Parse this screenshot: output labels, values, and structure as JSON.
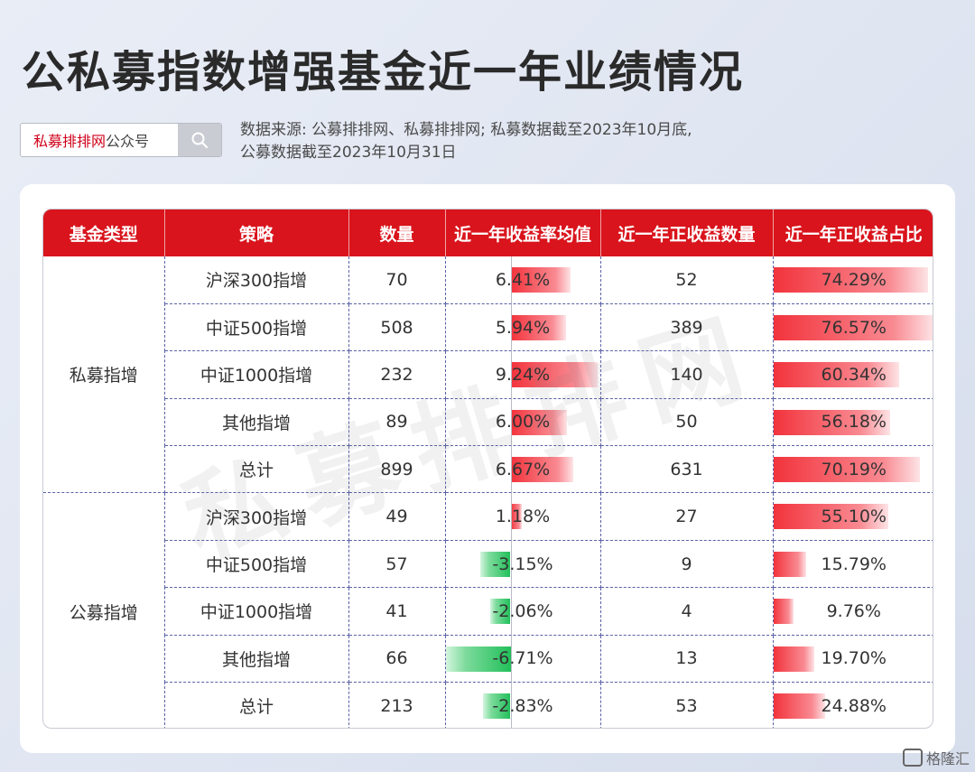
{
  "title": "公私募指数增强基金近一年业绩情况",
  "search": {
    "brand": "私募排排网",
    "suffix": "公众号"
  },
  "source_lines": [
    "数据来源: 公募排排网、私募排排网; 私募数据截至2023年10月底,",
    "公募数据截至2023年10月31日"
  ],
  "watermark": "私募排排网",
  "logo_text": "格隆汇",
  "colors": {
    "header": "#d9141c",
    "positive_bar": "#f2333c",
    "negative_bar": "#22bf5a"
  },
  "chart_data": {
    "type": "table",
    "columns": [
      "基金类型",
      "策略",
      "数量",
      "近一年收益率均值",
      "近一年正收益数量",
      "近一年正收益占比"
    ],
    "groups": [
      {
        "name": "私募指增",
        "rows": [
          {
            "strategy": "沪深300指增",
            "count": 70,
            "avg_return": "6.41%",
            "avg_return_value": 6.41,
            "positive_count": 52,
            "positive_ratio": "74.29%",
            "positive_ratio_value": 74.29
          },
          {
            "strategy": "中证500指增",
            "count": 508,
            "avg_return": "5.94%",
            "avg_return_value": 5.94,
            "positive_count": 389,
            "positive_ratio": "76.57%",
            "positive_ratio_value": 76.57
          },
          {
            "strategy": "中证1000指增",
            "count": 232,
            "avg_return": "9.24%",
            "avg_return_value": 9.24,
            "positive_count": 140,
            "positive_ratio": "60.34%",
            "positive_ratio_value": 60.34
          },
          {
            "strategy": "其他指增",
            "count": 89,
            "avg_return": "6.00%",
            "avg_return_value": 6.0,
            "positive_count": 50,
            "positive_ratio": "56.18%",
            "positive_ratio_value": 56.18
          },
          {
            "strategy": "总计",
            "count": 899,
            "avg_return": "6.67%",
            "avg_return_value": 6.67,
            "positive_count": 631,
            "positive_ratio": "70.19%",
            "positive_ratio_value": 70.19
          }
        ]
      },
      {
        "name": "公募指增",
        "rows": [
          {
            "strategy": "沪深300指增",
            "count": 49,
            "avg_return": "1.18%",
            "avg_return_value": 1.18,
            "positive_count": 27,
            "positive_ratio": "55.10%",
            "positive_ratio_value": 55.1
          },
          {
            "strategy": "中证500指增",
            "count": 57,
            "avg_return": "-3.15%",
            "avg_return_value": -3.15,
            "positive_count": 9,
            "positive_ratio": "15.79%",
            "positive_ratio_value": 15.79
          },
          {
            "strategy": "中证1000指增",
            "count": 41,
            "avg_return": "-2.06%",
            "avg_return_value": -2.06,
            "positive_count": 4,
            "positive_ratio": "9.76%",
            "positive_ratio_value": 9.76
          },
          {
            "strategy": "其他指增",
            "count": 66,
            "avg_return": "-6.71%",
            "avg_return_value": -6.71,
            "positive_count": 13,
            "positive_ratio": "19.70%",
            "positive_ratio_value": 19.7
          },
          {
            "strategy": "总计",
            "count": 213,
            "avg_return": "-2.83%",
            "avg_return_value": -2.83,
            "positive_count": 53,
            "positive_ratio": "24.88%",
            "positive_ratio_value": 24.88
          }
        ]
      }
    ]
  }
}
